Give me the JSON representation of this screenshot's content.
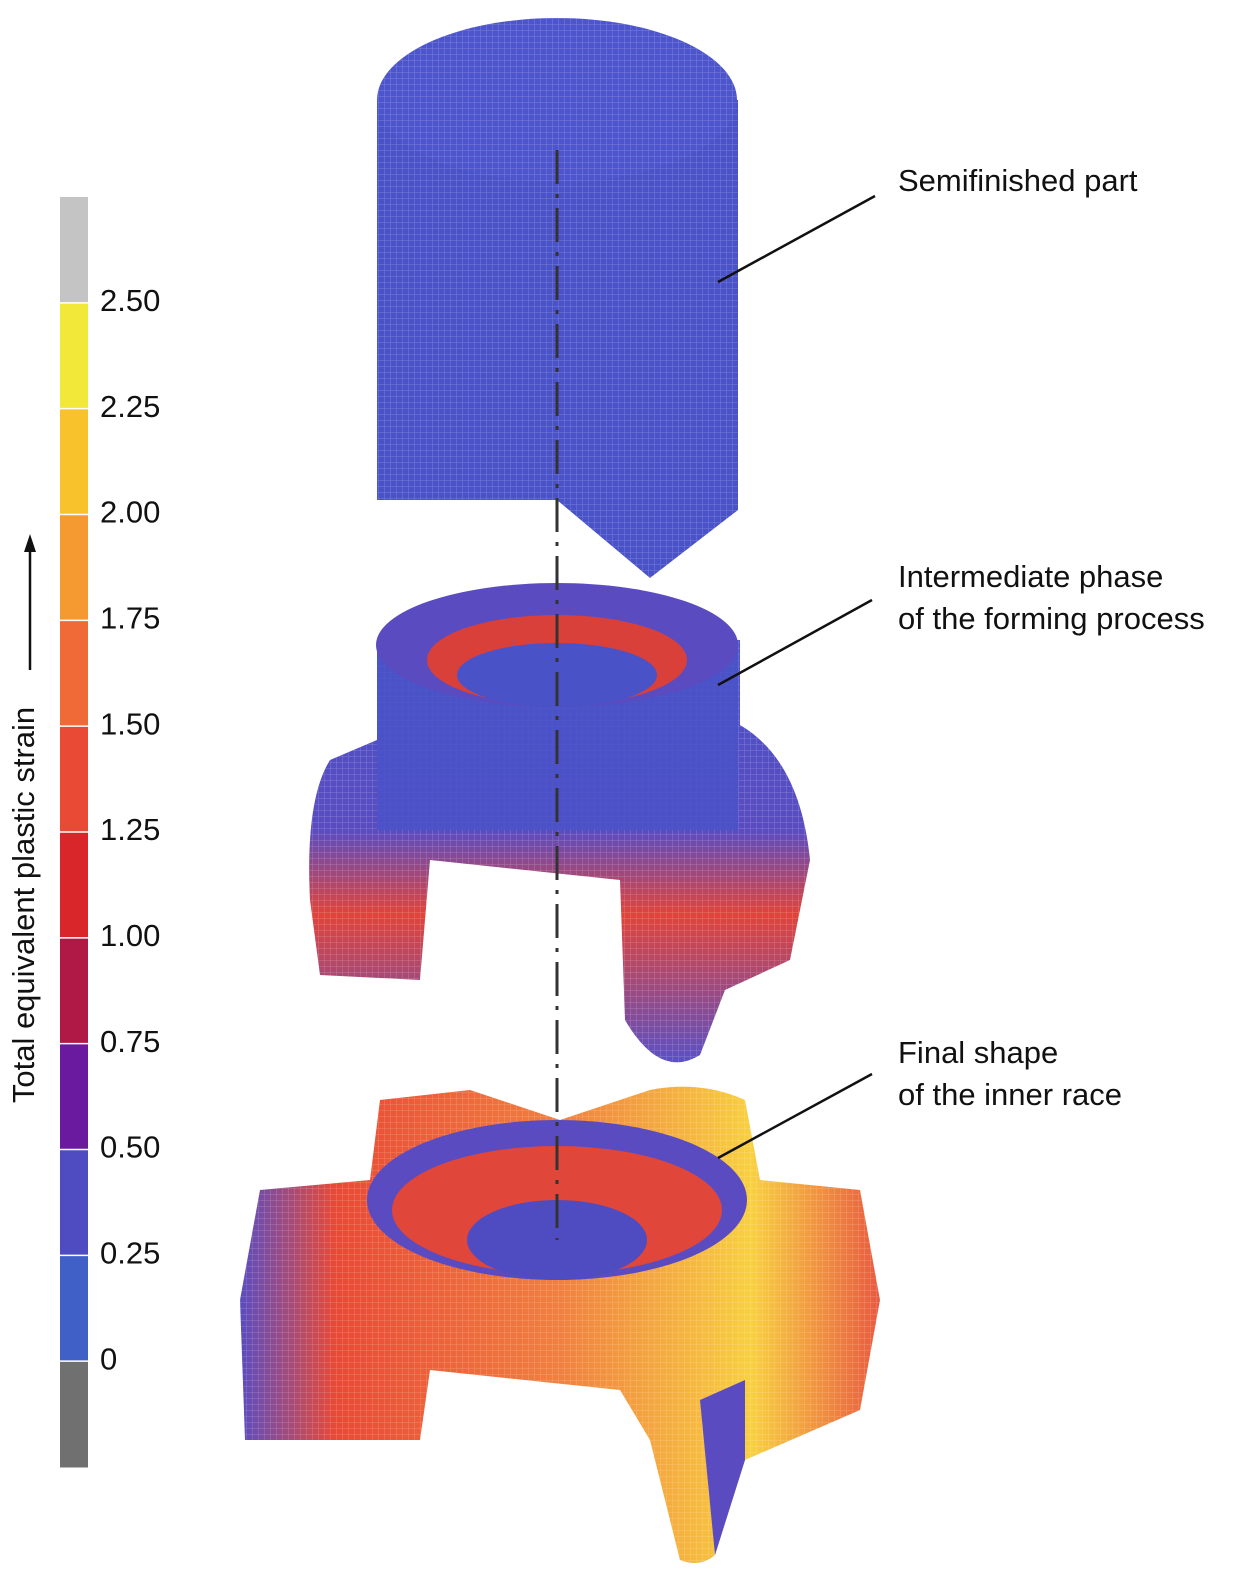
{
  "colorbar": {
    "label": "Total equivalent plastic strain",
    "colors": [
      "#c4c4c4",
      "#f2e83a",
      "#f8c22c",
      "#f59a30",
      "#ef6a36",
      "#e84a35",
      "#d9262b",
      "#b01845",
      "#6a1a9e",
      "#4e4cc0",
      "#4060c8",
      "#707070"
    ],
    "ticks": [
      "2.50",
      "2.25",
      "2.00",
      "1.75",
      "1.50",
      "1.25",
      "1.00",
      "0.75",
      "0.50",
      "0.25",
      "0"
    ]
  },
  "annotations": [
    {
      "lines": [
        "Semifinished part"
      ]
    },
    {
      "lines": [
        "Intermediate phase",
        "of the forming process"
      ]
    },
    {
      "lines": [
        "Final shape",
        "of the inner race"
      ]
    }
  ]
}
